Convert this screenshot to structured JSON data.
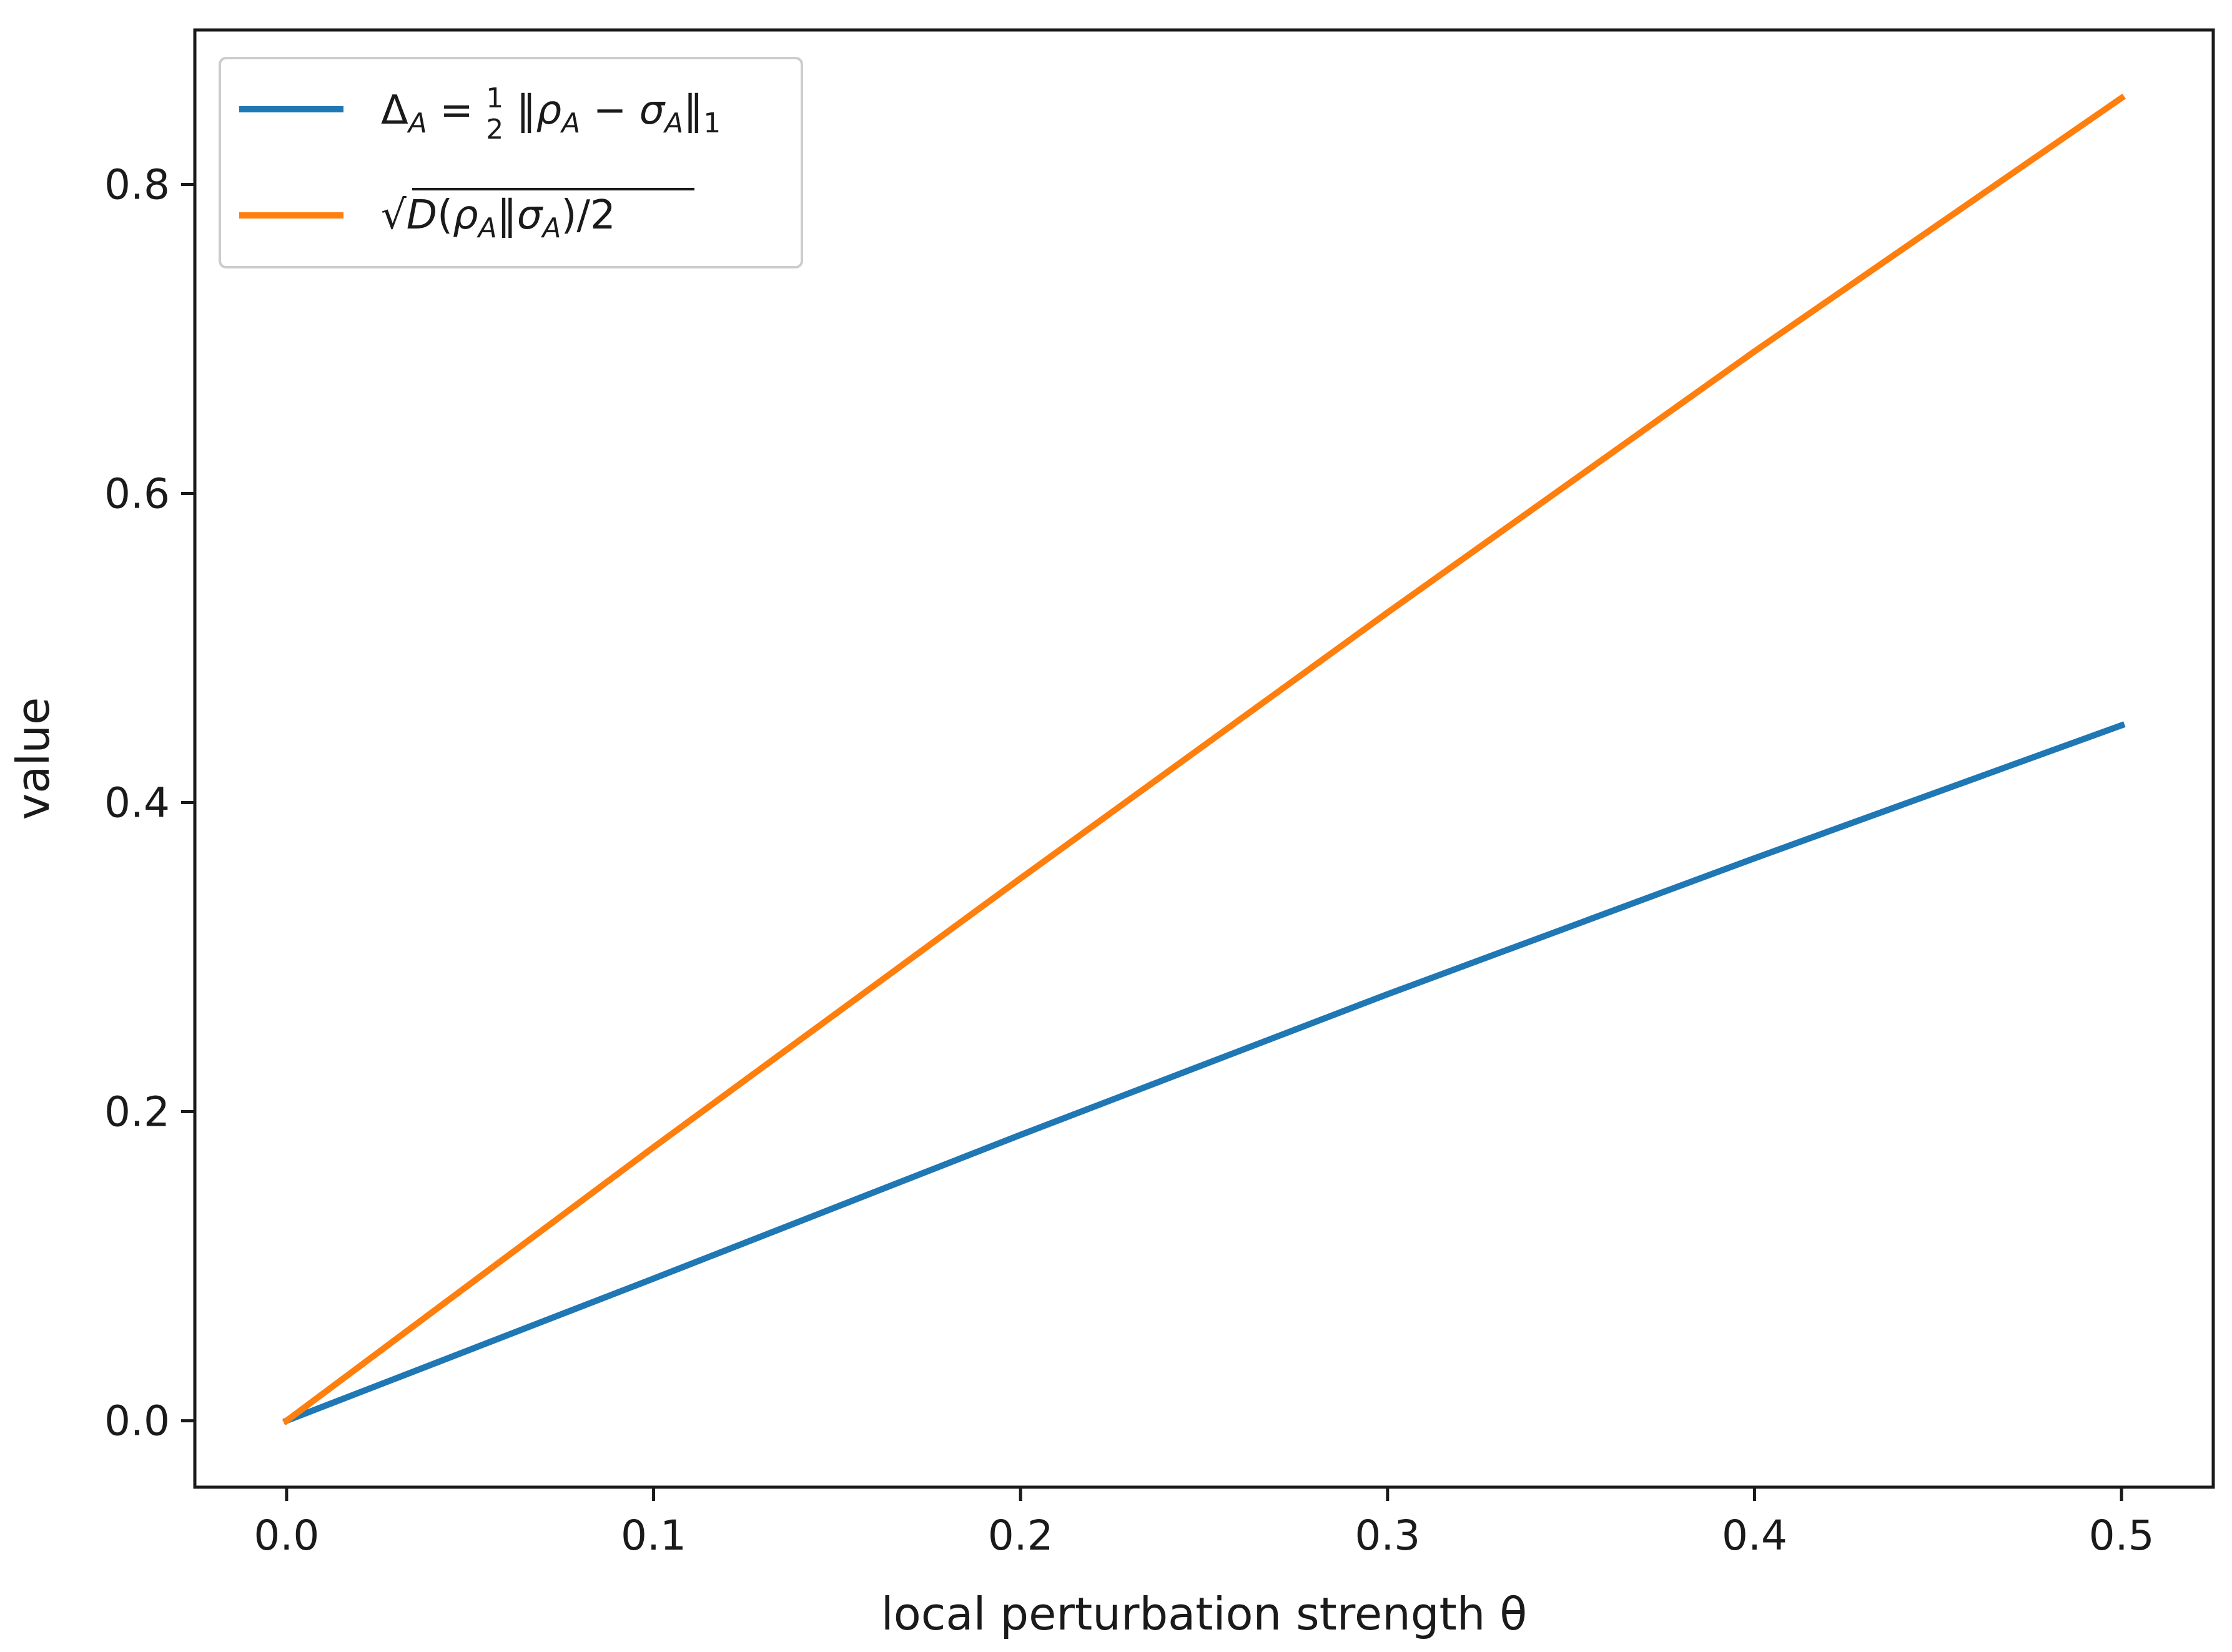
{
  "chart_data": {
    "type": "line",
    "xlabel": "local perturbation strength θ",
    "ylabel": "value",
    "xlim": [
      -0.025,
      0.525
    ],
    "ylim": [
      -0.043,
      0.9
    ],
    "xticks": [
      "0.0",
      "0.1",
      "0.2",
      "0.3",
      "0.4",
      "0.5"
    ],
    "yticks": [
      "0.0",
      "0.2",
      "0.4",
      "0.6",
      "0.8"
    ],
    "grid": false,
    "legend_position": "top-left",
    "series": [
      {
        "name": "Δ_A = ½‖ρ_A − σ_A‖₁",
        "color": "#1f77b4",
        "x": [
          0.0,
          0.1,
          0.2,
          0.3,
          0.4,
          0.5
        ],
        "y": [
          0.0,
          0.092,
          0.185,
          0.276,
          0.364,
          0.45
        ]
      },
      {
        "name": "√D(ρ_A‖σ_A)/2",
        "color": "#ff7f0e",
        "x": [
          0.0,
          0.1,
          0.2,
          0.3,
          0.4,
          0.5
        ],
        "y": [
          0.0,
          0.177,
          0.351,
          0.523,
          0.692,
          0.856
        ]
      }
    ]
  }
}
